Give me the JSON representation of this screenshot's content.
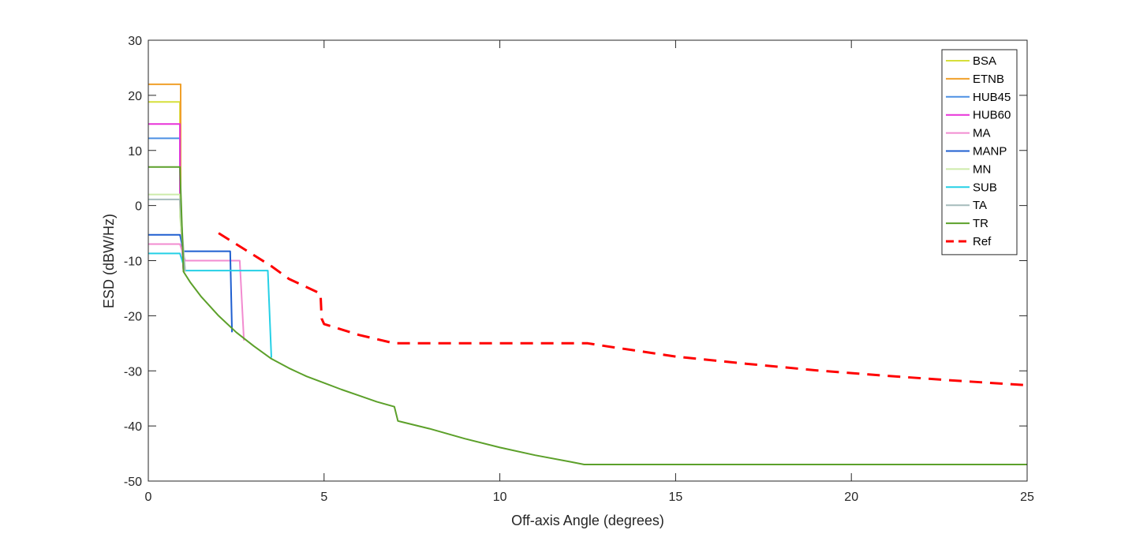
{
  "chart_data": {
    "type": "line",
    "title": "",
    "xlabel": "Off-axis Angle (degrees)",
    "ylabel": "ESD (dBW/Hz)",
    "xlim": [
      0,
      25
    ],
    "ylim": [
      -50,
      30
    ],
    "xticks": [
      0,
      5,
      10,
      15,
      20,
      25
    ],
    "yticks": [
      -50,
      -40,
      -30,
      -20,
      -10,
      0,
      10,
      20,
      30
    ],
    "grid": false,
    "box": true,
    "legend_position": "top-right",
    "series": [
      {
        "name": "BSA",
        "color": "#d6df3a",
        "dash": false,
        "x": [
          0,
          0.9,
          0.9,
          1.0
        ],
        "y": [
          18.8,
          18.8,
          0,
          -12
        ]
      },
      {
        "name": "ETNB",
        "color": "#f0a02a",
        "dash": false,
        "x": [
          0,
          0.92,
          0.92,
          1.0
        ],
        "y": [
          22,
          22,
          0,
          -12
        ]
      },
      {
        "name": "HUB45",
        "color": "#4c90e4",
        "dash": false,
        "x": [
          0,
          0.9,
          0.9,
          1.0
        ],
        "y": [
          12.2,
          12.2,
          0,
          -12
        ]
      },
      {
        "name": "HUB60",
        "color": "#e832d8",
        "dash": false,
        "x": [
          0,
          0.9,
          0.9,
          1.0
        ],
        "y": [
          14.8,
          14.8,
          0,
          -12
        ]
      },
      {
        "name": "MA",
        "color": "#f28bd0",
        "dash": false,
        "x": [
          0,
          0.9,
          1.05,
          2.6,
          2.72
        ],
        "y": [
          -7,
          -7,
          -10,
          -10,
          -24.5
        ]
      },
      {
        "name": "MANP",
        "color": "#1f5fd0",
        "dash": false,
        "x": [
          0,
          0.9,
          1.0,
          2.33,
          2.38
        ],
        "y": [
          -5.3,
          -5.3,
          -8.3,
          -8.3,
          -23
        ]
      },
      {
        "name": "MN",
        "color": "#cdebaa",
        "dash": false,
        "x": [
          0,
          0.9,
          0.9,
          1.05
        ],
        "y": [
          2,
          2,
          -2,
          -12
        ]
      },
      {
        "name": "SUB",
        "color": "#25d0e6",
        "dash": false,
        "x": [
          0,
          0.9,
          1.05,
          3.4,
          3.5
        ],
        "y": [
          -8.7,
          -8.7,
          -11.8,
          -11.8,
          -27.6
        ]
      },
      {
        "name": "TA",
        "color": "#a6bcbc",
        "dash": false,
        "x": [
          0,
          0.9,
          1.0,
          1.05
        ],
        "y": [
          1.1,
          1.1,
          -8,
          -12
        ]
      },
      {
        "name": "TR",
        "color": "#5ca02a",
        "dash": false,
        "x": [
          0,
          0.9,
          1,
          1.2,
          1.5,
          2,
          2.5,
          3,
          3.5,
          4,
          4.5,
          5,
          5.5,
          6,
          6.5,
          7,
          7.1,
          8,
          9,
          10,
          11,
          12,
          12.4,
          13,
          15,
          20,
          25
        ],
        "y": [
          7,
          7,
          -12,
          -14,
          -16.5,
          -20,
          -23,
          -25.5,
          -27.8,
          -29.5,
          -31,
          -32.2,
          -33.4,
          -34.5,
          -35.6,
          -36.5,
          -39.1,
          -40.5,
          -42.3,
          -43.9,
          -45.3,
          -46.5,
          -47,
          -47,
          -47,
          -47,
          -47
        ]
      },
      {
        "name": "Ref",
        "color": "#ff0000",
        "dash": true,
        "x": [
          2,
          3,
          3.5,
          4,
          4.5,
          4.9,
          4.93,
          5,
          6,
          7,
          8,
          10,
          12.5,
          13,
          15,
          17,
          19,
          21,
          23,
          25
        ],
        "y": [
          -5,
          -9,
          -11,
          -13.3,
          -14.8,
          -16,
          -20.5,
          -21.5,
          -23.5,
          -25,
          -25,
          -25,
          -25,
          -25.5,
          -27.4,
          -28.7,
          -29.9,
          -30.9,
          -31.8,
          -32.6
        ]
      }
    ]
  }
}
